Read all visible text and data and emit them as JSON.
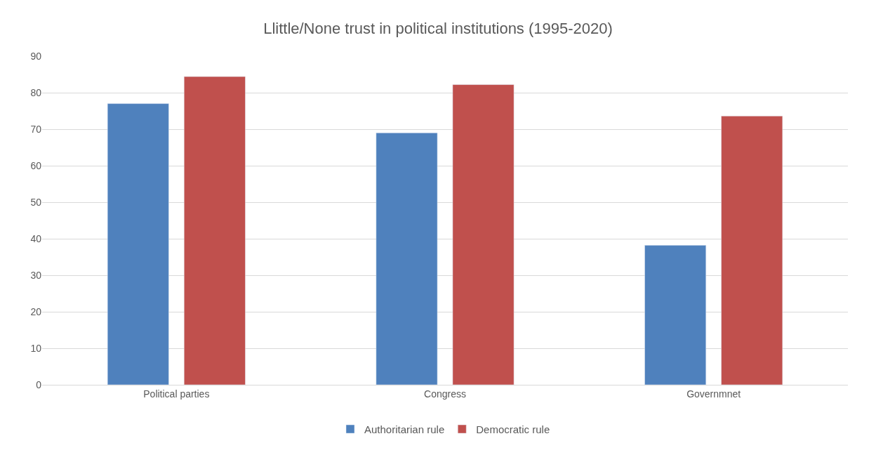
{
  "chart_data": {
    "type": "bar",
    "title": "Llittle/None trust in political institutions (1995-2020)",
    "categories": [
      "Political parties",
      "Congress",
      "Governmnet"
    ],
    "series": [
      {
        "name": "Authoritarian rule",
        "color": "#4f81bd",
        "values": [
          77,
          69,
          38.2
        ]
      },
      {
        "name": "Democratic rule",
        "color": "#c0504d",
        "values": [
          84.4,
          82.2,
          73.6
        ]
      }
    ],
    "ylim": [
      0,
      90
    ],
    "yticks": [
      0,
      10,
      20,
      30,
      40,
      50,
      60,
      70,
      80,
      90
    ],
    "grid": "y",
    "legend": "bottom"
  }
}
